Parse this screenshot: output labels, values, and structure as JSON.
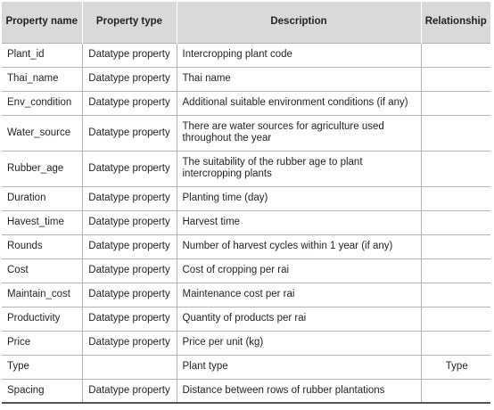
{
  "headers": [
    "Property name",
    "Property type",
    "Description",
    "Relationship"
  ],
  "rows": [
    {
      "name": "Plant_id",
      "type": "Datatype property",
      "description": "Intercropping plant code",
      "relationship": ""
    },
    {
      "name": "Thai_name",
      "type": "Datatype property",
      "description": "Thai name",
      "relationship": ""
    },
    {
      "name": "Env_condition",
      "type": "Datatype property",
      "description": "Additional suitable environment conditions (if any)",
      "relationship": ""
    },
    {
      "name": "Water_source",
      "type": "Datatype property",
      "description": "There are water sources for agriculture used throughout the year",
      "relationship": ""
    },
    {
      "name": "Rubber_age",
      "type": "Datatype property",
      "description": "The suitability of the rubber age to plant intercropping plants",
      "relationship": ""
    },
    {
      "name": "Duration",
      "type": "Datatype property",
      "description": "Planting time (day)",
      "relationship": ""
    },
    {
      "name": "Havest_time",
      "type": "Datatype property",
      "description": "Harvest time",
      "relationship": ""
    },
    {
      "name": "Rounds",
      "type": "Datatype property",
      "description": "Number of harvest cycles within 1 year (if any)",
      "relationship": ""
    },
    {
      "name": "Cost",
      "type": "Datatype property",
      "description": "Cost of cropping per rai",
      "relationship": ""
    },
    {
      "name": "Maintain_cost",
      "type": "Datatype property",
      "description": "Maintenance cost per rai",
      "relationship": ""
    },
    {
      "name": "Productivity",
      "type": "Datatype property",
      "description": "Quantity of products per rai",
      "relationship": ""
    },
    {
      "name": "Price",
      "type": "Datatype property",
      "description": "Price per unit (kg)",
      "relationship": ""
    },
    {
      "name": "Type",
      "type": "",
      "description": "Plant type",
      "relationship": "Type"
    },
    {
      "name": "Spacing",
      "type": "Datatype property",
      "description": "Distance between rows of rubber plantations",
      "relationship": ""
    }
  ]
}
